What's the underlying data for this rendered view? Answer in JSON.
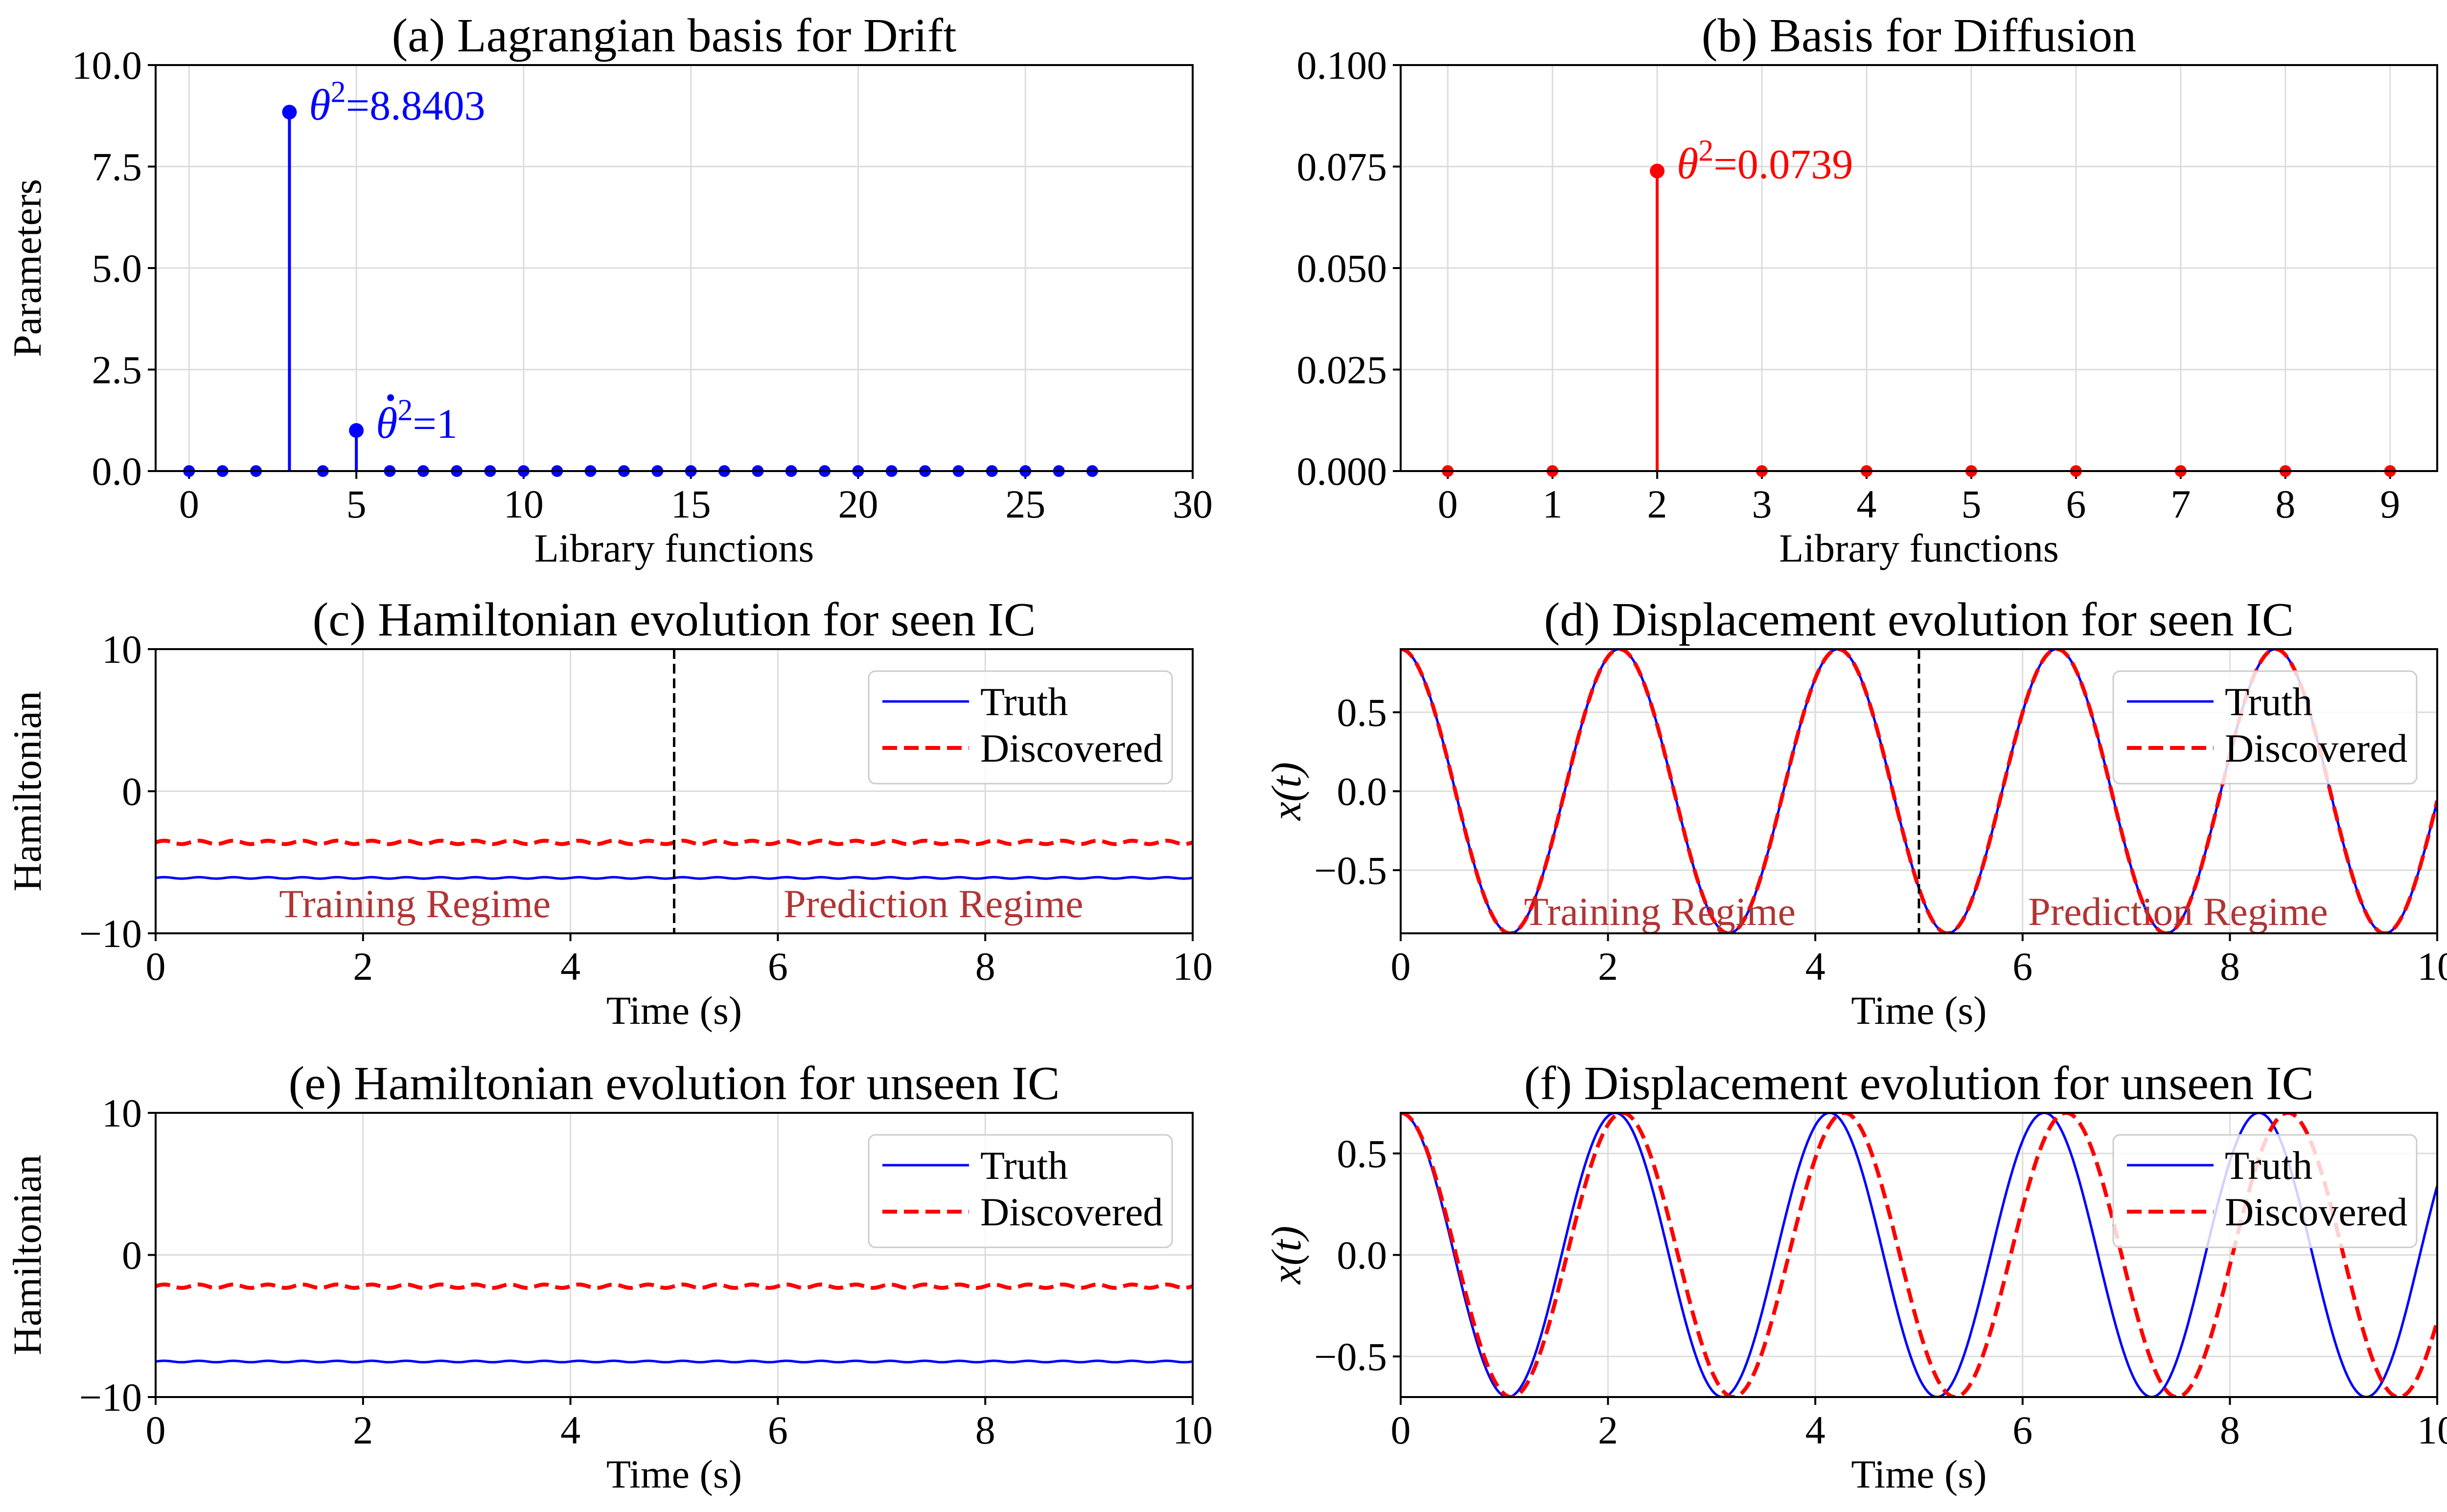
{
  "chart_data": [
    {
      "id": "a",
      "type": "stem",
      "title": "(a) Lagrangian basis for Drift",
      "xlabel": "Library functions",
      "ylabel": "Parameters",
      "xlim": [
        -1,
        30
      ],
      "ylim": [
        0,
        10
      ],
      "xticks": [
        0,
        5,
        10,
        15,
        20,
        25,
        30
      ],
      "xtick_labels": [
        "0",
        "5",
        "10",
        "15",
        "20",
        "25",
        "30"
      ],
      "yticks": [
        0,
        2.5,
        5,
        7.5,
        10
      ],
      "ytick_labels": [
        "0.0",
        "2.5",
        "5.0",
        "7.5",
        "10.0"
      ],
      "grid": true,
      "color": "#0000ff",
      "x": [
        0,
        1,
        2,
        3,
        4,
        5,
        6,
        7,
        8,
        9,
        10,
        11,
        12,
        13,
        14,
        15,
        16,
        17,
        18,
        19,
        20,
        21,
        22,
        23,
        24,
        25,
        26,
        27
      ],
      "values": [
        0,
        0,
        0,
        8.8403,
        0,
        1,
        0,
        0,
        0,
        0,
        0,
        0,
        0,
        0,
        0,
        0,
        0,
        0,
        0,
        0,
        0,
        0,
        0,
        0,
        0,
        0,
        0,
        0
      ],
      "annotations": [
        {
          "symbol": "θ",
          "text": "=8.8403",
          "x": 3,
          "y": 8.8403,
          "dot": false
        },
        {
          "symbol": "θ",
          "text": "=1",
          "x": 5,
          "y": 1,
          "dot": true
        }
      ]
    },
    {
      "id": "b",
      "type": "stem",
      "title": "(b) Basis for Diffusion",
      "xlabel": "Library functions",
      "ylabel": "",
      "xlim": [
        -0.45,
        9.45
      ],
      "ylim": [
        0,
        0.1
      ],
      "xticks": [
        0,
        1,
        2,
        3,
        4,
        5,
        6,
        7,
        8,
        9
      ],
      "xtick_labels": [
        "0",
        "1",
        "2",
        "3",
        "4",
        "5",
        "6",
        "7",
        "8",
        "9"
      ],
      "yticks": [
        0,
        0.025,
        0.05,
        0.075,
        0.1
      ],
      "ytick_labels": [
        "0.000",
        "0.025",
        "0.050",
        "0.075",
        "0.100"
      ],
      "grid": true,
      "color": "#ff0000",
      "x": [
        0,
        1,
        2,
        3,
        4,
        5,
        6,
        7,
        8,
        9
      ],
      "values": [
        0,
        0,
        0.0739,
        0,
        0,
        0,
        0,
        0,
        0,
        0
      ],
      "annotations": [
        {
          "symbol": "θ",
          "text": "=0.0739",
          "x": 2,
          "y": 0.0739,
          "dot": false
        }
      ]
    },
    {
      "id": "c",
      "type": "line",
      "title": "(c) Hamiltonian evolution for seen IC",
      "xlabel": "Time (s)",
      "ylabel": "Hamiltonian",
      "xlim": [
        0,
        10
      ],
      "ylim": [
        -10,
        10
      ],
      "xticks": [
        0,
        2,
        4,
        6,
        8,
        10
      ],
      "xtick_labels": [
        "0",
        "2",
        "4",
        "6",
        "8",
        "10"
      ],
      "yticks": [
        -10,
        0,
        10
      ],
      "ytick_labels": [
        "−10",
        "0",
        "10"
      ],
      "grid": true,
      "legend": "top-right",
      "split_line_x": 5,
      "regions": [
        "Training Regime",
        "Prediction Regime"
      ],
      "region_label_y": -7.9,
      "series": [
        {
          "name": "Truth",
          "kind": "constant",
          "level": -6.1,
          "ripple": 0.05,
          "ripple_freq": 3.0,
          "color": "#0000ff",
          "dashed": false
        },
        {
          "name": "Discovered",
          "kind": "constant",
          "level": -3.6,
          "ripple": 0.12,
          "ripple_freq": 3.0,
          "color": "#ff0000",
          "dashed": true
        }
      ]
    },
    {
      "id": "d",
      "type": "line",
      "title": "(d) Displacement evolution for seen IC",
      "xlabel": "Time (s)",
      "ylabel": "x(t)",
      "xlim": [
        0,
        10
      ],
      "ylim": [
        -0.9,
        0.9
      ],
      "xticks": [
        0,
        2,
        4,
        6,
        8,
        10
      ],
      "xtick_labels": [
        "0",
        "2",
        "4",
        "6",
        "8",
        "10"
      ],
      "yticks": [
        -0.5,
        0,
        0.5
      ],
      "ytick_labels": [
        "−0.5",
        "0.0",
        "0.5"
      ],
      "grid": true,
      "legend": "top-right",
      "split_line_x": 5,
      "regions": [
        "Training Regime",
        "Prediction Regime"
      ],
      "region_label_y": -0.76,
      "series": [
        {
          "name": "Truth",
          "kind": "cosine",
          "amplitude": 0.9,
          "period": 2.11,
          "color": "#0000ff",
          "dashed": false
        },
        {
          "name": "Discovered",
          "kind": "cosine",
          "amplitude": 0.9,
          "period": 2.11,
          "color": "#ff0000",
          "dashed": true
        }
      ]
    },
    {
      "id": "e",
      "type": "line",
      "title": "(e) Hamiltonian evolution for unseen IC",
      "xlabel": "Time (s)",
      "ylabel": "Hamiltonian",
      "xlim": [
        0,
        10
      ],
      "ylim": [
        -10,
        10
      ],
      "xticks": [
        0,
        2,
        4,
        6,
        8,
        10
      ],
      "xtick_labels": [
        "0",
        "2",
        "4",
        "6",
        "8",
        "10"
      ],
      "yticks": [
        -10,
        0,
        10
      ],
      "ytick_labels": [
        "−10",
        "0",
        "10"
      ],
      "grid": true,
      "legend": "top-right",
      "series": [
        {
          "name": "Truth",
          "kind": "constant",
          "level": -7.5,
          "ripple": 0.05,
          "ripple_freq": 3.0,
          "color": "#0000ff",
          "dashed": false
        },
        {
          "name": "Discovered",
          "kind": "constant",
          "level": -2.2,
          "ripple": 0.12,
          "ripple_freq": 3.0,
          "color": "#ff0000",
          "dashed": true
        }
      ]
    },
    {
      "id": "f",
      "type": "line",
      "title": "(f) Displacement evolution for unseen IC",
      "xlabel": "Time (s)",
      "ylabel": "x(t)",
      "xlim": [
        0,
        10
      ],
      "ylim": [
        -0.7,
        0.7
      ],
      "xticks": [
        0,
        2,
        4,
        6,
        8,
        10
      ],
      "xtick_labels": [
        "0",
        "2",
        "4",
        "6",
        "8",
        "10"
      ],
      "yticks": [
        -0.5,
        0,
        0.5
      ],
      "ytick_labels": [
        "−0.5",
        "0.0",
        "0.5"
      ],
      "grid": true,
      "legend": "top-right",
      "series": [
        {
          "name": "Truth",
          "kind": "cosine",
          "amplitude": 0.7,
          "period": 2.07,
          "color": "#0000ff",
          "dashed": false
        },
        {
          "name": "Discovered",
          "kind": "cosine",
          "amplitude": 0.7,
          "period": 2.14,
          "color": "#ff0000",
          "dashed": true
        }
      ]
    }
  ]
}
